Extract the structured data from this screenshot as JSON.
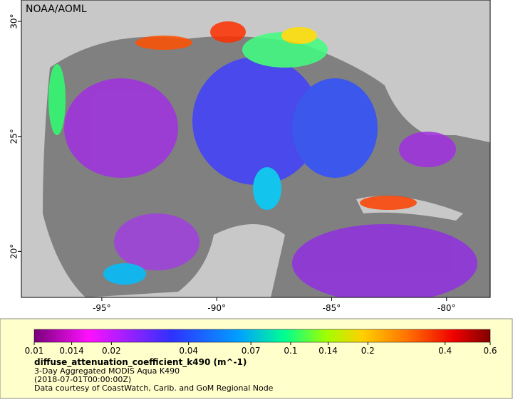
{
  "map": {
    "credit": "NOAA/AOML",
    "xlim": [
      -98.5,
      -78.1
    ],
    "ylim": [
      18,
      30.93
    ],
    "xticks": [
      {
        "value": -95,
        "label": "-95°"
      },
      {
        "value": -90,
        "label": "-90°"
      },
      {
        "value": -85,
        "label": "-85°"
      },
      {
        "value": -80,
        "label": "-80°"
      }
    ],
    "yticks": [
      {
        "value": 20,
        "label": "20°"
      },
      {
        "value": 25,
        "label": "25°"
      },
      {
        "value": 30,
        "label": "30°"
      }
    ],
    "colorbar": {
      "scale": "log",
      "lim": [
        0.01,
        0.6
      ],
      "ticks": [
        0.01,
        0.014,
        0.02,
        0.04,
        0.07,
        0.1,
        0.14,
        0.2,
        0.4,
        0.6
      ]
    },
    "variable": "diffuse_attenuation_coefficient_k490 (m^-1)",
    "dataset": "3-Day Aggregated MODIS Aqua K490",
    "time": "(2018-07-01T00:00:00Z)",
    "courtesy": "Data courtesy of CoastWatch, Carib. and GoM Regional Node"
  }
}
